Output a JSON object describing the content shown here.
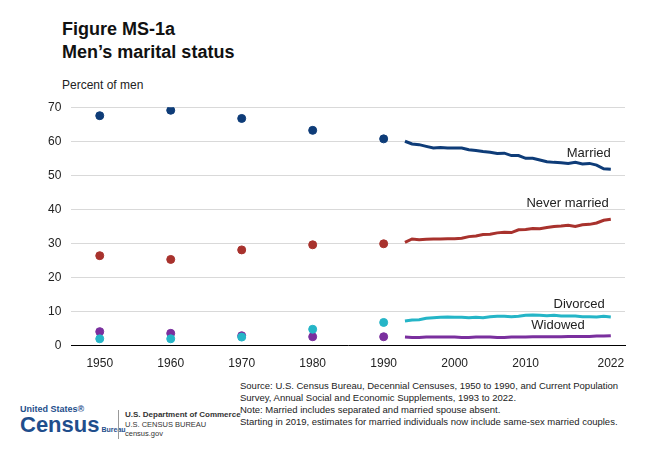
{
  "chart_data": {
    "type": "line",
    "title": "Figure MS-1a",
    "subtitle": "Men’s marital status",
    "ylabel": "Percent of men",
    "x": [
      1950,
      1960,
      1970,
      1980,
      1990,
      1993,
      1994,
      1995,
      1996,
      1997,
      1998,
      1999,
      2000,
      2001,
      2002,
      2003,
      2004,
      2005,
      2006,
      2007,
      2008,
      2009,
      2010,
      2011,
      2012,
      2013,
      2014,
      2015,
      2016,
      2017,
      2018,
      2019,
      2020,
      2021,
      2022
    ],
    "series": [
      {
        "name": "Married",
        "color": "#0e3c78",
        "type": "scatter",
        "marker": "circle",
        "values": [
          67.5,
          69.1,
          66.7,
          63.2,
          60.7,
          null,
          null,
          null,
          null,
          null,
          null,
          null,
          null,
          null,
          null,
          null,
          null,
          null,
          null,
          null,
          null,
          null,
          null,
          null,
          null,
          null,
          null,
          null,
          null,
          null,
          null,
          null,
          null,
          null,
          null
        ]
      },
      {
        "name": "Never married",
        "color": "#a8322d",
        "type": "scatter",
        "marker": "circle",
        "values": [
          26.4,
          25.3,
          28.1,
          29.6,
          29.9,
          null,
          null,
          null,
          null,
          null,
          null,
          null,
          null,
          null,
          null,
          null,
          null,
          null,
          null,
          null,
          null,
          null,
          null,
          null,
          null,
          null,
          null,
          null,
          null,
          null,
          null,
          null,
          null,
          null,
          null
        ]
      },
      {
        "name": "Divorced",
        "color": "#25b5c7",
        "type": "scatter",
        "marker": "circle",
        "values": [
          2.0,
          2.0,
          2.5,
          4.8,
          6.8,
          null,
          null,
          null,
          null,
          null,
          null,
          null,
          null,
          null,
          null,
          null,
          null,
          null,
          null,
          null,
          null,
          null,
          null,
          null,
          null,
          null,
          null,
          null,
          null,
          null,
          null,
          null,
          null,
          null,
          null
        ]
      },
      {
        "name": "Widowed",
        "color": "#7a2f9e",
        "type": "scatter",
        "marker": "circle",
        "values": [
          4.1,
          3.6,
          2.9,
          2.6,
          2.6,
          null,
          null,
          null,
          null,
          null,
          null,
          null,
          null,
          null,
          null,
          null,
          null,
          null,
          null,
          null,
          null,
          null,
          null,
          null,
          null,
          null,
          null,
          null,
          null,
          null,
          null,
          null,
          null,
          null,
          null
        ]
      },
      {
        "name": "Married",
        "color": "#0e3c78",
        "type": "line",
        "line_style": "solid",
        "values": [
          null,
          null,
          null,
          null,
          null,
          60.0,
          59.2,
          59.0,
          58.5,
          58.0,
          58.2,
          58.0,
          58.0,
          58.0,
          57.5,
          57.3,
          57.0,
          56.8,
          56.4,
          56.5,
          55.8,
          55.8,
          55.0,
          55.0,
          54.5,
          54.0,
          53.8,
          53.7,
          53.5,
          53.8,
          53.3,
          53.5,
          53.0,
          51.9,
          51.8
        ]
      },
      {
        "name": "Never married",
        "color": "#a8322d",
        "type": "line",
        "line_style": "solid",
        "values": [
          null,
          null,
          null,
          null,
          null,
          30.3,
          31.3,
          31.1,
          31.2,
          31.3,
          31.3,
          31.4,
          31.4,
          31.5,
          32.0,
          32.2,
          32.6,
          32.7,
          33.1,
          33.3,
          33.2,
          34.0,
          34.1,
          34.4,
          34.3,
          34.7,
          35.0,
          35.1,
          35.3,
          35.0,
          35.5,
          35.6,
          36.0,
          36.8,
          37.1
        ]
      },
      {
        "name": "Divorced",
        "color": "#25b5c7",
        "type": "line",
        "line_style": "solid",
        "values": [
          null,
          null,
          null,
          null,
          null,
          7.2,
          7.5,
          7.6,
          8.0,
          8.2,
          8.3,
          8.4,
          8.3,
          8.3,
          8.2,
          8.3,
          8.2,
          8.5,
          8.6,
          8.6,
          8.5,
          8.6,
          8.9,
          9.0,
          8.9,
          8.8,
          8.9,
          8.7,
          8.7,
          8.7,
          8.5,
          8.5,
          8.4,
          8.6,
          8.4
        ]
      },
      {
        "name": "Widowed",
        "color": "#7a2f9e",
        "type": "line",
        "line_style": "solid",
        "values": [
          null,
          null,
          null,
          null,
          null,
          2.5,
          2.4,
          2.4,
          2.5,
          2.5,
          2.5,
          2.5,
          2.5,
          2.4,
          2.4,
          2.5,
          2.5,
          2.5,
          2.4,
          2.4,
          2.5,
          2.5,
          2.5,
          2.6,
          2.6,
          2.6,
          2.6,
          2.6,
          2.7,
          2.7,
          2.7,
          2.7,
          2.8,
          2.8,
          2.9
        ]
      }
    ],
    "xlim": [
      1946,
      2024
    ],
    "xticks": [
      1950,
      1960,
      1970,
      1980,
      1990,
      2000,
      2010,
      2022
    ],
    "ylim": [
      0,
      70
    ],
    "yticks": [
      0,
      10,
      20,
      30,
      40,
      50,
      60,
      70
    ],
    "grid": true,
    "source": "Source: U.S. Census Bureau, Decennial Censuses, 1950 to 1990, and Current Population Survey, Annual Social and Economic Supplements, 1993 to 2022.",
    "notes": [
      "Note: Married includes separated and married spouse absent.",
      "Starting in 2019, estimates for married individuals now include same-sex married couples."
    ]
  },
  "footer": {
    "logo": [
      "United States®",
      "Census",
      "Bureau"
    ],
    "agency": [
      "U.S. Department of Commerce",
      "U.S. CENSUS BUREAU",
      "census.gov"
    ]
  }
}
